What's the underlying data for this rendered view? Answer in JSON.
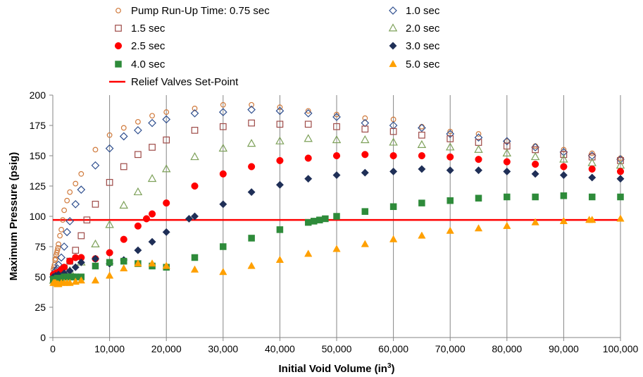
{
  "chart_data": {
    "type": "scatter",
    "xlabel_main": "Initial Void Volume (in",
    "xlabel_sup": "3",
    "xlabel_end": ")",
    "ylabel": "Maximum Pressure (psig)",
    "xlim": [
      0,
      100000
    ],
    "ylim": [
      0,
      200
    ],
    "x_ticks": [
      0,
      10000,
      20000,
      30000,
      40000,
      50000,
      60000,
      70000,
      80000,
      90000,
      100000
    ],
    "x_tick_labels": [
      "0",
      "10,000",
      "20,000",
      "30,000",
      "40,000",
      "50,000",
      "60,000",
      "70,000",
      "80,000",
      "90,000",
      "100,000"
    ],
    "y_ticks": [
      0,
      25,
      50,
      75,
      100,
      125,
      150,
      175,
      200
    ],
    "y_tick_labels": [
      "0",
      "25",
      "50",
      "75",
      "100",
      "125",
      "150",
      "175",
      "200"
    ],
    "grid": "vertical",
    "legend_position": "top",
    "series": [
      {
        "name": "Pump Run-Up Time: 0.75 sec",
        "marker": "circle-open",
        "color": "#d07a3c",
        "x": [
          100,
          200,
          300,
          400,
          500,
          600,
          700,
          800,
          900,
          1000,
          1250,
          1500,
          1750,
          2000,
          2500,
          3000,
          4000,
          5000,
          7500,
          10000,
          12500,
          15000,
          17500,
          20000,
          25000,
          30000,
          35000,
          40000,
          45000,
          50000,
          55000,
          60000,
          65000,
          70000,
          75000,
          80000,
          85000,
          90000,
          95000,
          100000
        ],
        "y": [
          56,
          58,
          60,
          64,
          65,
          68,
          70,
          72,
          74,
          77,
          84,
          89,
          97,
          105,
          113,
          120,
          127,
          135,
          155,
          167,
          173,
          178,
          183,
          186,
          189,
          192,
          192,
          190,
          187,
          184,
          181,
          180,
          174,
          170,
          168,
          162,
          158,
          155,
          152,
          148
        ]
      },
      {
        "name": "1.0 sec",
        "marker": "diamond-open",
        "color": "#2f4f8f",
        "x": [
          100,
          300,
          500,
          800,
          1000,
          1500,
          2000,
          2500,
          3000,
          4000,
          5000,
          7500,
          10000,
          12500,
          15000,
          17500,
          20000,
          25000,
          30000,
          35000,
          40000,
          45000,
          50000,
          55000,
          60000,
          65000,
          70000,
          75000,
          80000,
          85000,
          90000,
          95000,
          100000
        ],
        "y": [
          50,
          52,
          55,
          57,
          60,
          66,
          75,
          87,
          96,
          110,
          122,
          142,
          156,
          166,
          171,
          177,
          180,
          185,
          186,
          188,
          187,
          185,
          182,
          177,
          175,
          173,
          168,
          165,
          162,
          157,
          153,
          150,
          147
        ]
      },
      {
        "name": "1.5 sec",
        "marker": "square-open",
        "color": "#9e4a47",
        "x": [
          100,
          500,
          1000,
          1500,
          2000,
          3000,
          4000,
          5000,
          6000,
          7500,
          10000,
          12500,
          15000,
          17500,
          20000,
          25000,
          30000,
          35000,
          40000,
          45000,
          50000,
          55000,
          60000,
          65000,
          70000,
          75000,
          80000,
          85000,
          90000,
          95000,
          100000
        ],
        "y": [
          48,
          50,
          52,
          54,
          57,
          63,
          72,
          84,
          97,
          110,
          128,
          141,
          151,
          157,
          163,
          171,
          174,
          177,
          176,
          176,
          174,
          172,
          170,
          167,
          164,
          161,
          158,
          155,
          151,
          149,
          146
        ]
      },
      {
        "name": "2.0 sec",
        "marker": "triangle-open",
        "color": "#7ea15a",
        "x": [
          100,
          500,
          1000,
          2000,
          3000,
          5000,
          7500,
          10000,
          12500,
          15000,
          17500,
          20000,
          25000,
          30000,
          35000,
          40000,
          45000,
          50000,
          55000,
          60000,
          65000,
          70000,
          75000,
          80000,
          85000,
          90000,
          95000,
          100000
        ],
        "y": [
          47,
          48,
          50,
          52,
          55,
          62,
          77,
          93,
          109,
          120,
          131,
          139,
          149,
          156,
          160,
          162,
          164,
          163,
          163,
          161,
          159,
          157,
          155,
          152,
          149,
          147,
          144,
          142
        ]
      },
      {
        "name": "2.5 sec",
        "marker": "circle",
        "color": "#ff0000",
        "x": [
          100,
          500,
          1000,
          1500,
          2000,
          3000,
          4000,
          5000,
          7500,
          10000,
          12500,
          15000,
          16500,
          17500,
          20000,
          25000,
          30000,
          35000,
          40000,
          45000,
          50000,
          55000,
          60000,
          65000,
          70000,
          75000,
          80000,
          85000,
          90000,
          95000,
          100000
        ],
        "y": [
          52,
          53,
          54,
          56,
          58,
          63,
          66,
          66,
          65,
          70,
          81,
          92,
          98,
          102,
          111,
          125,
          135,
          141,
          146,
          148,
          150,
          151,
          150,
          150,
          149,
          147,
          145,
          143,
          141,
          139,
          137
        ]
      },
      {
        "name": "3.0 sec",
        "marker": "diamond",
        "color": "#1f2f57",
        "x": [
          100,
          500,
          1000,
          2000,
          3000,
          4000,
          5000,
          7500,
          10000,
          12500,
          15000,
          17500,
          20000,
          24000,
          25000,
          30000,
          35000,
          40000,
          45000,
          50000,
          55000,
          60000,
          65000,
          70000,
          75000,
          80000,
          85000,
          90000,
          95000,
          100000
        ],
        "y": [
          50,
          51,
          52,
          53,
          55,
          58,
          62,
          65,
          61,
          64,
          72,
          79,
          87,
          98,
          100,
          110,
          120,
          126,
          131,
          134,
          136,
          137,
          139,
          138,
          138,
          137,
          135,
          134,
          132,
          131
        ]
      },
      {
        "name": "4.0 sec",
        "marker": "square",
        "color": "#2e8b3a",
        "x": [
          100,
          300,
          500,
          800,
          1000,
          1500,
          2000,
          2500,
          3000,
          3500,
          4000,
          5000,
          7500,
          10000,
          12500,
          15000,
          17500,
          20000,
          25000,
          30000,
          35000,
          40000,
          45000,
          46000,
          47000,
          48000,
          50000,
          55000,
          60000,
          65000,
          70000,
          75000,
          80000,
          85000,
          90000,
          95000,
          100000
        ],
        "y": [
          48,
          48,
          48,
          49,
          49,
          49,
          50,
          50,
          50,
          50,
          50,
          50,
          59,
          62,
          63,
          61,
          59,
          58,
          66,
          75,
          82,
          89,
          95,
          96,
          97,
          98,
          100,
          104,
          108,
          111,
          113,
          115,
          116,
          116,
          117,
          116,
          116
        ]
      },
      {
        "name": "5.0 sec",
        "marker": "triangle",
        "color": "#ffa000",
        "x": [
          100,
          300,
          500,
          800,
          1000,
          1500,
          2000,
          2500,
          3000,
          4000,
          5000,
          7500,
          10000,
          12500,
          15000,
          17500,
          20000,
          25000,
          30000,
          35000,
          40000,
          45000,
          50000,
          55000,
          60000,
          65000,
          70000,
          75000,
          80000,
          85000,
          90000,
          94500,
          95000,
          100000
        ],
        "y": [
          45,
          45,
          45,
          44,
          44,
          45,
          45,
          45,
          45,
          46,
          47,
          47,
          51,
          57,
          61,
          61,
          59,
          56,
          54,
          59,
          64,
          69,
          73,
          77,
          81,
          84,
          88,
          90,
          92,
          95,
          96,
          97,
          97,
          98
        ]
      }
    ],
    "reference_line": {
      "name": "Relief Valves Set-Point",
      "y": 97,
      "color": "#ff0000"
    }
  }
}
